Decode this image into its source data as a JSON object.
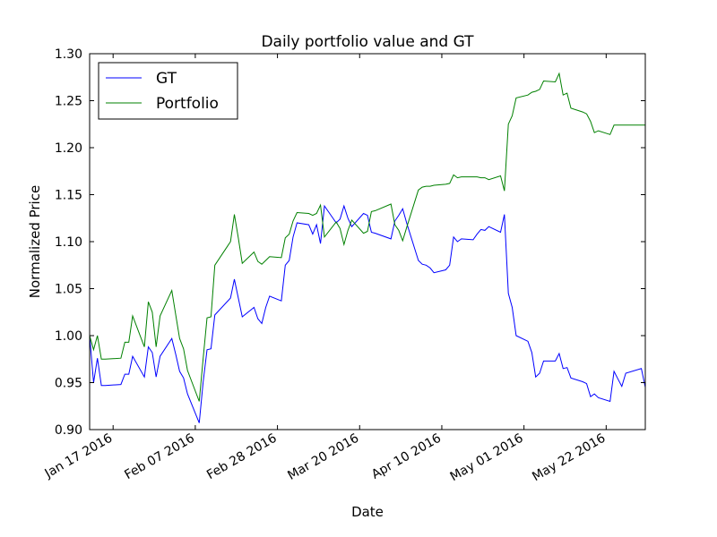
{
  "chart_data": {
    "type": "line",
    "title": "Daily portfolio value and GT",
    "xlabel": "Date",
    "ylabel": "Normalized Price",
    "x_range": [
      "2016-01-11",
      "2016-06-01"
    ],
    "ylim": [
      0.9,
      1.3
    ],
    "yticks": [
      "0.90",
      "0.95",
      "1.00",
      "1.05",
      "1.10",
      "1.15",
      "1.20",
      "1.25",
      "1.30"
    ],
    "xticks": [
      {
        "date": "2016-01-17",
        "label": "Jan 17 2016"
      },
      {
        "date": "2016-02-07",
        "label": "Feb 07 2016"
      },
      {
        "date": "2016-02-28",
        "label": "Feb 28 2016"
      },
      {
        "date": "2016-03-20",
        "label": "Mar 20 2016"
      },
      {
        "date": "2016-04-10",
        "label": "Apr 10 2016"
      },
      {
        "date": "2016-05-01",
        "label": "May 01 2016"
      },
      {
        "date": "2016-05-22",
        "label": "May 22 2016"
      }
    ],
    "grid": false,
    "legend_position": "top-left",
    "series": [
      {
        "name": "GT",
        "color": "#0000ff",
        "points": [
          [
            "2016-01-11",
            1.0
          ],
          [
            "2016-01-12",
            0.95
          ],
          [
            "2016-01-13",
            0.976
          ],
          [
            "2016-01-14",
            0.947
          ],
          [
            "2016-01-15",
            0.947
          ],
          [
            "2016-01-19",
            0.948
          ],
          [
            "2016-01-20",
            0.959
          ],
          [
            "2016-01-21",
            0.959
          ],
          [
            "2016-01-22",
            0.978
          ],
          [
            "2016-01-25",
            0.956
          ],
          [
            "2016-01-26",
            0.988
          ],
          [
            "2016-01-27",
            0.982
          ],
          [
            "2016-01-28",
            0.956
          ],
          [
            "2016-01-29",
            0.978
          ],
          [
            "2016-02-01",
            0.997
          ],
          [
            "2016-02-02",
            0.98
          ],
          [
            "2016-02-03",
            0.962
          ],
          [
            "2016-02-04",
            0.955
          ],
          [
            "2016-02-05",
            0.938
          ],
          [
            "2016-02-08",
            0.907
          ],
          [
            "2016-02-09",
            0.95
          ],
          [
            "2016-02-10",
            0.985
          ],
          [
            "2016-02-11",
            0.986
          ],
          [
            "2016-02-12",
            1.022
          ],
          [
            "2016-02-16",
            1.04
          ],
          [
            "2016-02-17",
            1.06
          ],
          [
            "2016-02-18",
            1.04
          ],
          [
            "2016-02-19",
            1.02
          ],
          [
            "2016-02-22",
            1.03
          ],
          [
            "2016-02-23",
            1.018
          ],
          [
            "2016-02-24",
            1.013
          ],
          [
            "2016-02-25",
            1.03
          ],
          [
            "2016-02-26",
            1.042
          ],
          [
            "2016-02-29",
            1.037
          ],
          [
            "2016-03-01",
            1.075
          ],
          [
            "2016-03-02",
            1.08
          ],
          [
            "2016-03-03",
            1.105
          ],
          [
            "2016-03-04",
            1.12
          ],
          [
            "2016-03-07",
            1.118
          ],
          [
            "2016-03-08",
            1.108
          ],
          [
            "2016-03-09",
            1.118
          ],
          [
            "2016-03-10",
            1.098
          ],
          [
            "2016-03-11",
            1.138
          ],
          [
            "2016-03-14",
            1.12
          ],
          [
            "2016-03-15",
            1.124
          ],
          [
            "2016-03-16",
            1.138
          ],
          [
            "2016-03-17",
            1.125
          ],
          [
            "2016-03-18",
            1.116
          ],
          [
            "2016-03-21",
            1.13
          ],
          [
            "2016-03-22",
            1.128
          ],
          [
            "2016-03-23",
            1.11
          ],
          [
            "2016-03-24",
            1.109
          ],
          [
            "2016-03-28",
            1.103
          ],
          [
            "2016-03-29",
            1.122
          ],
          [
            "2016-03-30",
            1.128
          ],
          [
            "2016-03-31",
            1.135
          ],
          [
            "2016-04-01",
            1.12
          ],
          [
            "2016-04-04",
            1.08
          ],
          [
            "2016-04-05",
            1.076
          ],
          [
            "2016-04-06",
            1.075
          ],
          [
            "2016-04-07",
            1.072
          ],
          [
            "2016-04-08",
            1.067
          ],
          [
            "2016-04-11",
            1.07
          ],
          [
            "2016-04-12",
            1.075
          ],
          [
            "2016-04-13",
            1.105
          ],
          [
            "2016-04-14",
            1.1
          ],
          [
            "2016-04-15",
            1.103
          ],
          [
            "2016-04-18",
            1.102
          ],
          [
            "2016-04-19",
            1.108
          ],
          [
            "2016-04-20",
            1.113
          ],
          [
            "2016-04-21",
            1.112
          ],
          [
            "2016-04-22",
            1.116
          ],
          [
            "2016-04-25",
            1.11
          ],
          [
            "2016-04-26",
            1.129
          ],
          [
            "2016-04-27",
            1.045
          ],
          [
            "2016-04-28",
            1.03
          ],
          [
            "2016-04-29",
            1.0
          ],
          [
            "2016-05-02",
            0.994
          ],
          [
            "2016-05-03",
            0.982
          ],
          [
            "2016-05-04",
            0.956
          ],
          [
            "2016-05-05",
            0.96
          ],
          [
            "2016-05-06",
            0.973
          ],
          [
            "2016-05-09",
            0.973
          ],
          [
            "2016-05-10",
            0.981
          ],
          [
            "2016-05-11",
            0.965
          ],
          [
            "2016-05-12",
            0.966
          ],
          [
            "2016-05-13",
            0.955
          ],
          [
            "2016-05-16",
            0.951
          ],
          [
            "2016-05-17",
            0.949
          ],
          [
            "2016-05-18",
            0.935
          ],
          [
            "2016-05-19",
            0.938
          ],
          [
            "2016-05-20",
            0.934
          ],
          [
            "2016-05-23",
            0.93
          ],
          [
            "2016-05-24",
            0.962
          ],
          [
            "2016-05-25",
            0.954
          ],
          [
            "2016-05-26",
            0.946
          ],
          [
            "2016-05-27",
            0.96
          ],
          [
            "2016-05-31",
            0.965
          ],
          [
            "2016-06-01",
            0.945
          ]
        ]
      },
      {
        "name": "Portfolio",
        "color": "#008000",
        "points": [
          [
            "2016-01-11",
            1.0
          ],
          [
            "2016-01-12",
            0.985
          ],
          [
            "2016-01-13",
            1.0
          ],
          [
            "2016-01-14",
            0.975
          ],
          [
            "2016-01-15",
            0.975
          ],
          [
            "2016-01-19",
            0.976
          ],
          [
            "2016-01-20",
            0.993
          ],
          [
            "2016-01-21",
            0.993
          ],
          [
            "2016-01-22",
            1.021
          ],
          [
            "2016-01-25",
            0.988
          ],
          [
            "2016-01-26",
            1.036
          ],
          [
            "2016-01-27",
            1.025
          ],
          [
            "2016-01-28",
            0.988
          ],
          [
            "2016-01-29",
            1.021
          ],
          [
            "2016-02-01",
            1.048
          ],
          [
            "2016-02-02",
            1.022
          ],
          [
            "2016-02-03",
            0.997
          ],
          [
            "2016-02-04",
            0.986
          ],
          [
            "2016-02-05",
            0.963
          ],
          [
            "2016-02-08",
            0.93
          ],
          [
            "2016-02-09",
            0.975
          ],
          [
            "2016-02-10",
            1.019
          ],
          [
            "2016-02-11",
            1.02
          ],
          [
            "2016-02-12",
            1.075
          ],
          [
            "2016-02-16",
            1.1
          ],
          [
            "2016-02-17",
            1.129
          ],
          [
            "2016-02-18",
            1.104
          ],
          [
            "2016-02-19",
            1.077
          ],
          [
            "2016-02-22",
            1.089
          ],
          [
            "2016-02-23",
            1.079
          ],
          [
            "2016-02-24",
            1.076
          ],
          [
            "2016-02-25",
            1.08
          ],
          [
            "2016-02-26",
            1.084
          ],
          [
            "2016-02-29",
            1.083
          ],
          [
            "2016-03-01",
            1.104
          ],
          [
            "2016-03-02",
            1.108
          ],
          [
            "2016-03-03",
            1.122
          ],
          [
            "2016-03-04",
            1.131
          ],
          [
            "2016-03-07",
            1.13
          ],
          [
            "2016-03-08",
            1.128
          ],
          [
            "2016-03-09",
            1.13
          ],
          [
            "2016-03-10",
            1.139
          ],
          [
            "2016-03-11",
            1.105
          ],
          [
            "2016-03-14",
            1.121
          ],
          [
            "2016-03-15",
            1.114
          ],
          [
            "2016-03-16",
            1.097
          ],
          [
            "2016-03-17",
            1.112
          ],
          [
            "2016-03-18",
            1.123
          ],
          [
            "2016-03-21",
            1.109
          ],
          [
            "2016-03-22",
            1.111
          ],
          [
            "2016-03-23",
            1.132
          ],
          [
            "2016-03-24",
            1.133
          ],
          [
            "2016-03-28",
            1.14
          ],
          [
            "2016-03-29",
            1.118
          ],
          [
            "2016-03-30",
            1.112
          ],
          [
            "2016-03-31",
            1.101
          ],
          [
            "2016-04-01",
            1.115
          ],
          [
            "2016-04-04",
            1.155
          ],
          [
            "2016-04-05",
            1.158
          ],
          [
            "2016-04-06",
            1.159
          ],
          [
            "2016-04-07",
            1.159
          ],
          [
            "2016-04-08",
            1.16
          ],
          [
            "2016-04-11",
            1.161
          ],
          [
            "2016-04-12",
            1.162
          ],
          [
            "2016-04-13",
            1.171
          ],
          [
            "2016-04-14",
            1.168
          ],
          [
            "2016-04-15",
            1.169
          ],
          [
            "2016-04-18",
            1.169
          ],
          [
            "2016-04-19",
            1.169
          ],
          [
            "2016-04-20",
            1.168
          ],
          [
            "2016-04-21",
            1.168
          ],
          [
            "2016-04-22",
            1.166
          ],
          [
            "2016-04-25",
            1.17
          ],
          [
            "2016-04-26",
            1.154
          ],
          [
            "2016-04-27",
            1.225
          ],
          [
            "2016-04-28",
            1.234
          ],
          [
            "2016-04-29",
            1.253
          ],
          [
            "2016-05-02",
            1.256
          ],
          [
            "2016-05-03",
            1.259
          ],
          [
            "2016-05-04",
            1.26
          ],
          [
            "2016-05-05",
            1.262
          ],
          [
            "2016-05-06",
            1.271
          ],
          [
            "2016-05-09",
            1.27
          ],
          [
            "2016-05-10",
            1.279
          ],
          [
            "2016-05-11",
            1.256
          ],
          [
            "2016-05-12",
            1.258
          ],
          [
            "2016-05-13",
            1.242
          ],
          [
            "2016-05-16",
            1.238
          ],
          [
            "2016-05-17",
            1.236
          ],
          [
            "2016-05-18",
            1.228
          ],
          [
            "2016-05-19",
            1.216
          ],
          [
            "2016-05-20",
            1.218
          ],
          [
            "2016-05-23",
            1.214
          ],
          [
            "2016-05-24",
            1.224
          ],
          [
            "2016-05-25",
            1.224
          ],
          [
            "2016-05-26",
            1.224
          ],
          [
            "2016-05-27",
            1.224
          ],
          [
            "2016-05-31",
            1.224
          ],
          [
            "2016-06-01",
            1.224
          ]
        ]
      }
    ]
  }
}
